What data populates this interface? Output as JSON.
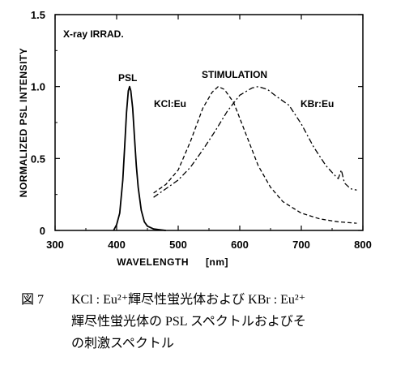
{
  "chart_data": {
    "type": "line",
    "xlabel": "WAVELENGTH",
    "xunit": "[nm]",
    "ylabel": "NORMALIZED PSL INTENSITY",
    "xlim": [
      300,
      800
    ],
    "ylim": [
      0,
      1.5
    ],
    "x_ticks": [
      "300",
      "400",
      "500",
      "600",
      "700",
      "800"
    ],
    "y_ticks": [
      "0",
      "0.5",
      "1.0",
      "1.5"
    ],
    "grid": false,
    "annotations": {
      "inset": "X-ray IRRAD.",
      "stimulation": "STIMULATION"
    },
    "series": [
      {
        "name": "PSL",
        "style": "solid",
        "x": [
          395,
          400,
          405,
          410,
          413,
          416,
          419,
          421,
          423,
          426,
          429,
          432,
          435,
          440,
          445,
          450,
          460,
          470,
          480
        ],
        "y": [
          0.0,
          0.04,
          0.12,
          0.35,
          0.58,
          0.82,
          0.97,
          1.0,
          0.97,
          0.85,
          0.65,
          0.45,
          0.3,
          0.14,
          0.06,
          0.03,
          0.01,
          0.005,
          0.0
        ]
      },
      {
        "name": "KCl:Eu",
        "style": "dashed",
        "x": [
          460,
          480,
          500,
          520,
          540,
          555,
          565,
          575,
          590,
          610,
          630,
          650,
          670,
          700,
          730,
          760,
          790
        ],
        "y": [
          0.26,
          0.32,
          0.42,
          0.62,
          0.85,
          0.96,
          1.0,
          0.98,
          0.89,
          0.67,
          0.45,
          0.3,
          0.2,
          0.12,
          0.08,
          0.06,
          0.05
        ]
      },
      {
        "name": "KBr:Eu",
        "style": "dash-dot",
        "x": [
          460,
          480,
          500,
          520,
          540,
          560,
          580,
          600,
          620,
          630,
          645,
          660,
          680,
          700,
          720,
          740,
          755,
          760,
          765,
          770,
          780,
          790
        ],
        "y": [
          0.23,
          0.29,
          0.35,
          0.44,
          0.56,
          0.69,
          0.83,
          0.94,
          0.99,
          1.0,
          0.98,
          0.93,
          0.87,
          0.74,
          0.58,
          0.45,
          0.38,
          0.36,
          0.42,
          0.33,
          0.29,
          0.28
        ]
      }
    ]
  },
  "caption": {
    "figure_number": "図 7",
    "line1": "KCl : Eu²⁺輝尽性蛍光体および KBr : Eu²⁺",
    "line2": "輝尽性蛍光体の PSL スペクトルおよびそ",
    "line3": "の刺激スペクトル"
  }
}
